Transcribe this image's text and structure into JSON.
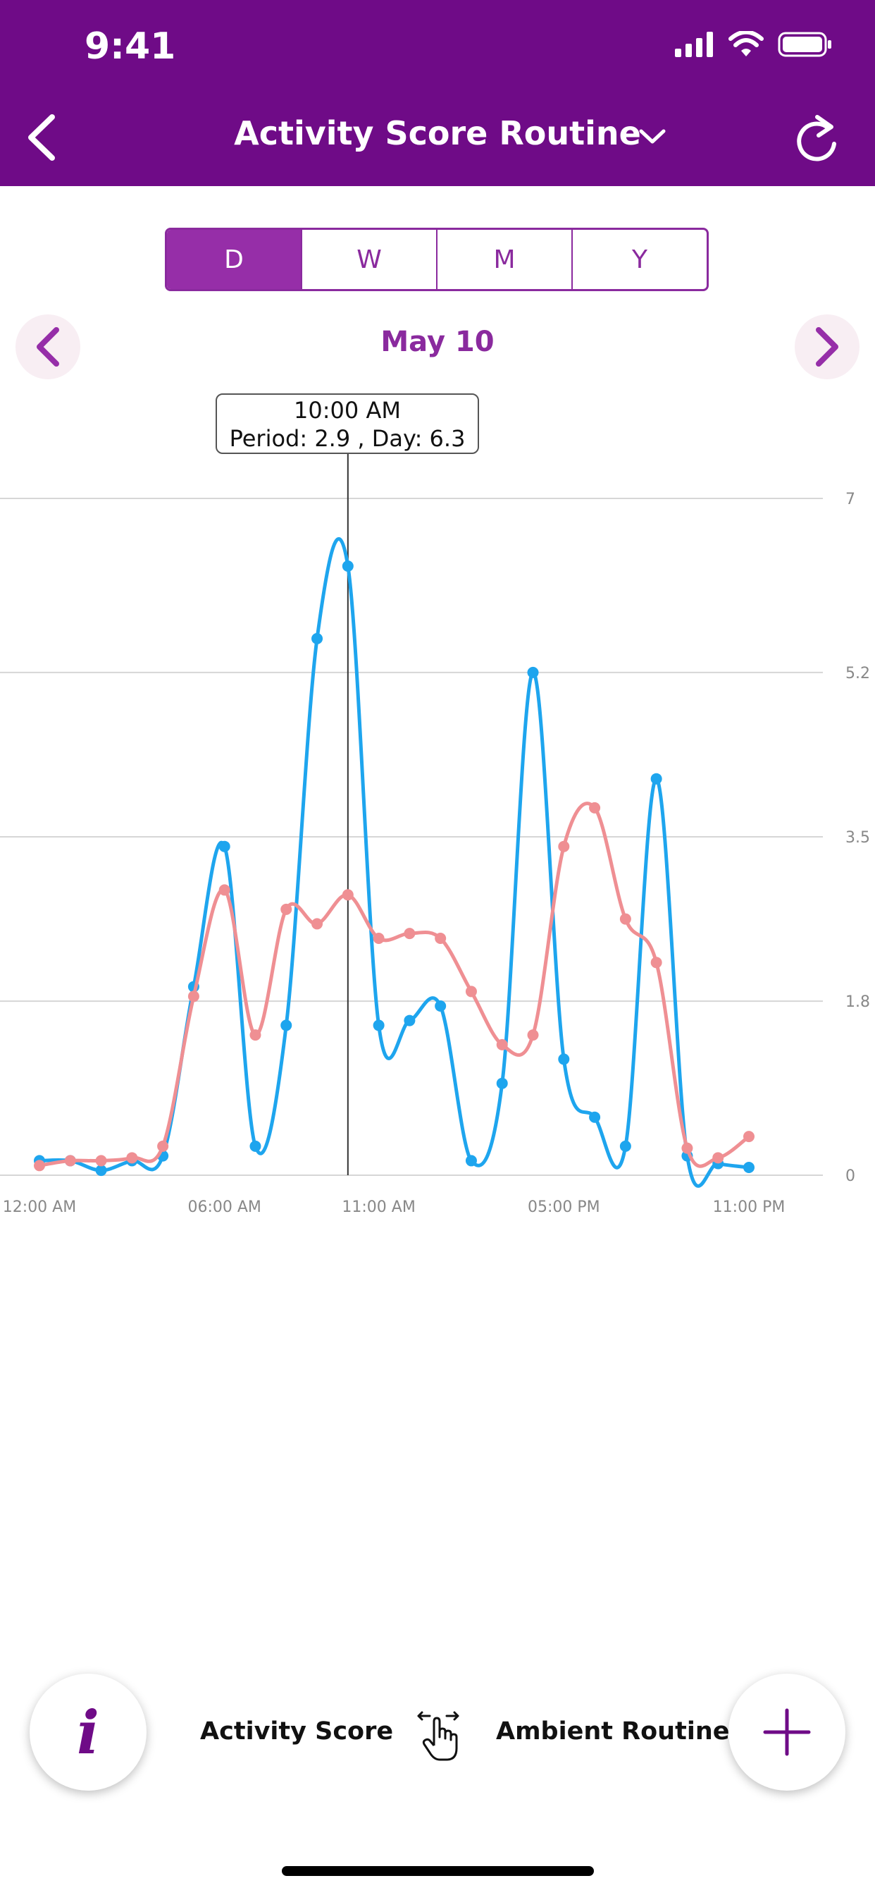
{
  "status_bar": {
    "time": "9:41"
  },
  "header": {
    "title": "Activity Score Routine"
  },
  "segments": [
    {
      "label": "D",
      "active": true
    },
    {
      "label": "W",
      "active": false
    },
    {
      "label": "M",
      "active": false
    },
    {
      "label": "Y",
      "active": false
    }
  ],
  "date_nav": {
    "label": "May 10"
  },
  "tooltip": {
    "time": "10:00 AM",
    "values": "Period: 2.9 , Day: 6.3"
  },
  "legend": {
    "activity_label": "Activity Score",
    "ambient_label": "Ambient Routine"
  },
  "colors": {
    "header": "#6f0b87",
    "accent": "#8a2a9e",
    "day_series": "#1ea5ee",
    "period_series": "#ef8f93"
  },
  "chart_data": {
    "type": "line",
    "x": [
      "12:00 AM",
      "1:00 AM",
      "2:00 AM",
      "3:00 AM",
      "4:00 AM",
      "5:00 AM",
      "6:00 AM",
      "7:00 AM",
      "8:00 AM",
      "9:00 AM",
      "10:00 AM",
      "11:00 AM",
      "12:00 PM",
      "1:00 PM",
      "2:00 PM",
      "3:00 PM",
      "4:00 PM",
      "5:00 PM",
      "6:00 PM",
      "7:00 PM",
      "8:00 PM",
      "9:00 PM",
      "10:00 PM",
      "11:00 PM"
    ],
    "x_tick_labels": [
      "12:00 AM",
      "06:00 AM",
      "11:00 AM",
      "05:00 PM",
      "11:00 PM"
    ],
    "y_tick_labels": [
      "7",
      "5.2",
      "3.5",
      "1.8",
      "0"
    ],
    "ylim": [
      0,
      7
    ],
    "series": [
      {
        "color": "#1ea5ee",
        "values": [
          0.15,
          0.15,
          0.05,
          0.15,
          0.2,
          1.95,
          3.4,
          0.3,
          1.55,
          5.55,
          6.3,
          1.55,
          1.6,
          1.75,
          0.15,
          0.95,
          5.2,
          1.2,
          0.6,
          0.3,
          4.1,
          0.2,
          0.12,
          0.08
        ]
      },
      {
        "color": "#ef8f93",
        "values": [
          0.1,
          0.15,
          0.15,
          0.18,
          0.3,
          1.85,
          2.95,
          1.45,
          2.75,
          2.6,
          2.9,
          2.45,
          2.5,
          2.45,
          1.9,
          1.35,
          1.45,
          3.4,
          3.8,
          2.65,
          2.2,
          0.28,
          0.18,
          0.4
        ]
      }
    ],
    "highlight": {
      "x": "10:00 AM"
    },
    "grid": true
  }
}
